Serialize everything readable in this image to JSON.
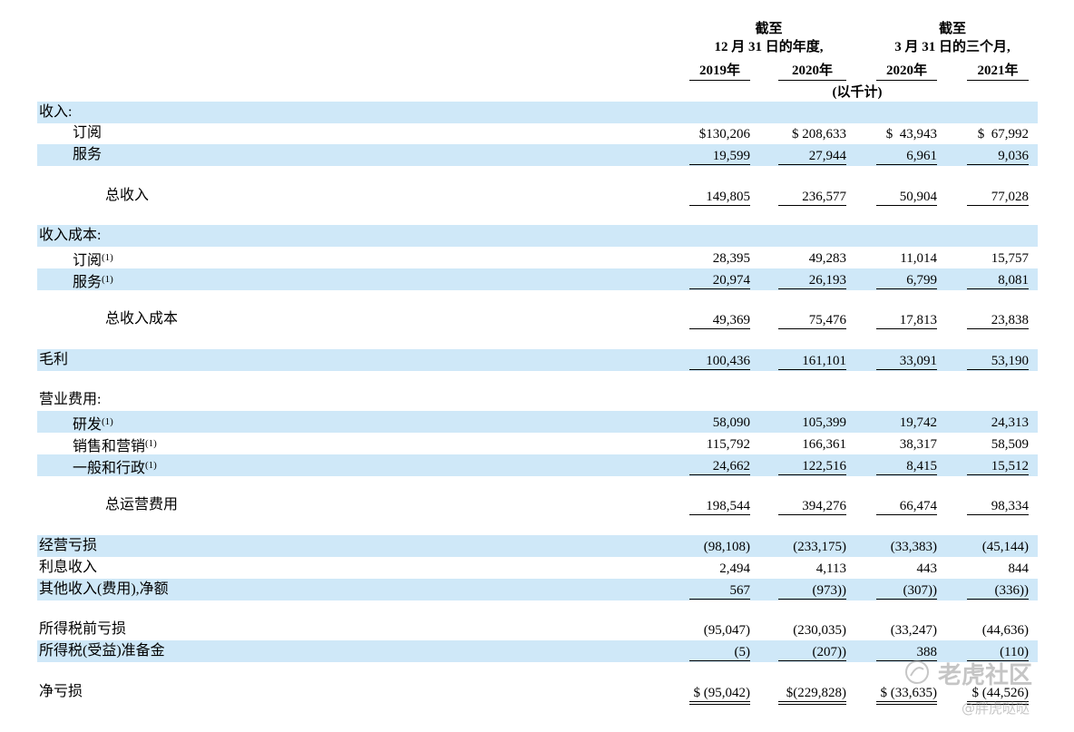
{
  "header": {
    "group1_title": "截至",
    "group1_sub": "12 月 31 日的年度,",
    "group2_title": "截至",
    "group2_sub": "3 月 31 日的三个月,",
    "years": [
      "2019年",
      "2020年",
      "2020年",
      "2021年"
    ],
    "unit": "(以千计)"
  },
  "rows": [
    {
      "label": "收入:",
      "sup": "",
      "indent": 0,
      "band": true,
      "values": [
        "",
        "",
        "",
        ""
      ]
    },
    {
      "label": "订阅",
      "sup": "",
      "indent": 1,
      "band": false,
      "values": [
        "$130,206",
        "$ 208,633",
        "$  43,943",
        "$  67,992"
      ]
    },
    {
      "label": "服务",
      "sup": "",
      "indent": 1,
      "band": true,
      "values": [
        "19,599",
        "27,944",
        "6,961",
        "9,036"
      ]
    },
    {
      "label": "总收入",
      "sup": "",
      "indent": 2,
      "band": false,
      "values": [
        "149,805",
        "236,577",
        "50,904",
        "77,028"
      ]
    },
    {
      "label": "收入成本:",
      "sup": "",
      "indent": 0,
      "band": true,
      "values": [
        "",
        "",
        "",
        ""
      ]
    },
    {
      "label": "订阅",
      "sup": "(1)",
      "indent": 1,
      "band": false,
      "values": [
        "28,395",
        "49,283",
        "11,014",
        "15,757"
      ]
    },
    {
      "label": "服务",
      "sup": "(1)",
      "indent": 1,
      "band": true,
      "values": [
        "20,974",
        "26,193",
        "6,799",
        "8,081"
      ]
    },
    {
      "label": "总收入成本",
      "sup": "",
      "indent": 2,
      "band": false,
      "values": [
        "49,369",
        "75,476",
        "17,813",
        "23,838"
      ]
    },
    {
      "label": "毛利",
      "sup": "",
      "indent": 0,
      "band": true,
      "values": [
        "100,436",
        "161,101",
        "33,091",
        "53,190"
      ]
    },
    {
      "label": "营业费用:",
      "sup": "",
      "indent": 0,
      "band": false,
      "values": [
        "",
        "",
        "",
        ""
      ]
    },
    {
      "label": "研发",
      "sup": "(1)",
      "indent": 1,
      "band": true,
      "values": [
        "58,090",
        "105,399",
        "19,742",
        "24,313"
      ]
    },
    {
      "label": "销售和营销",
      "sup": "(1)",
      "indent": 1,
      "band": false,
      "values": [
        "115,792",
        "166,361",
        "38,317",
        "58,509"
      ]
    },
    {
      "label": "一般和行政",
      "sup": "(1)",
      "indent": 1,
      "band": true,
      "values": [
        "24,662",
        "122,516",
        "8,415",
        "15,512"
      ]
    },
    {
      "label": "总运营费用",
      "sup": "",
      "indent": 2,
      "band": false,
      "values": [
        "198,544",
        "394,276",
        "66,474",
        "98,334"
      ]
    },
    {
      "label": "经营亏损",
      "sup": "",
      "indent": 0,
      "band": true,
      "values": [
        "(98,108)",
        "(233,175)",
        "(33,383)",
        "(45,144)"
      ]
    },
    {
      "label": "利息收入",
      "sup": "",
      "indent": 0,
      "band": false,
      "values": [
        "2,494",
        "4,113",
        "443",
        "844"
      ]
    },
    {
      "label": "其他收入(费用),净额",
      "sup": "",
      "indent": 0,
      "band": true,
      "values": [
        "567",
        "(973))",
        "(307))",
        "(336))"
      ]
    },
    {
      "label": "所得税前亏损",
      "sup": "",
      "indent": 0,
      "band": false,
      "values": [
        "(95,047)",
        "(230,035)",
        "(33,247)",
        "(44,636)"
      ]
    },
    {
      "label": "所得税(受益)准备金",
      "sup": "",
      "indent": 0,
      "band": true,
      "values": [
        "(5)",
        "(207))",
        "388",
        "(110)"
      ]
    },
    {
      "label": "净亏损",
      "sup": "",
      "indent": 0,
      "band": false,
      "values": [
        "$ (95,042)",
        "$(229,828)",
        "$ (33,635)",
        "$ (44,526)"
      ]
    }
  ],
  "watermark": {
    "brand": "老虎社区",
    "user": "@胖虎哒哒"
  }
}
